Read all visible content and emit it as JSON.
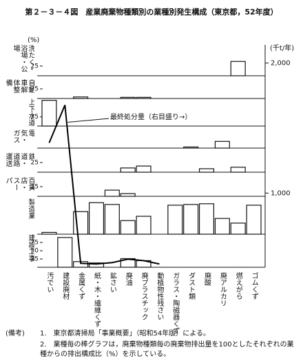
{
  "chart_data": {
    "type": "bar",
    "title": "第２－３－４図　産業廃棄物種類別の業種別発生構成（東京都，52年度）",
    "y_label": "(%)",
    "y2_label": "(千t/年)",
    "categories": [
      "汚でい",
      "建設廃材",
      "金属くず",
      "紙・木・繊維くず",
      "鉱さい",
      "廃油",
      "廃プラスチック",
      "動植物性残さい",
      "ガラス・陶磁器くず",
      "ダスト類",
      "廃酸",
      "廃アルカリ",
      "燃えがら",
      "ゴムくず"
    ],
    "color": "#ffffff",
    "panels": [
      {
        "name": "洗たく・浴場・公場",
        "ylim": [
          0,
          80
        ],
        "yticks": [
          25
        ],
        "values": [
          null,
          null,
          null,
          null,
          null,
          null,
          null,
          null,
          null,
          null,
          null,
          null,
          37,
          null
        ]
      },
      {
        "name": "自動車解体整備",
        "ylim": [
          0,
          50
        ],
        "yticks": [
          25
        ],
        "values": [
          null,
          null,
          4,
          null,
          null,
          3,
          3,
          null,
          null,
          null,
          null,
          null,
          null,
          null
        ]
      },
      {
        "name": "上下水道",
        "ylim": [
          0,
          75
        ],
        "yticks": [
          25
        ],
        "values": [
          70,
          null,
          null,
          null,
          null,
          null,
          null,
          null,
          null,
          null,
          null,
          null,
          null,
          null
        ]
      },
      {
        "name": "電気・ガス",
        "ylim": [
          0,
          50
        ],
        "values": [
          null,
          null,
          null,
          null,
          null,
          null,
          null,
          null,
          null,
          3,
          null,
          18,
          null,
          null
        ]
      },
      {
        "name": "鉄道・道路運送",
        "ylim": [
          0,
          50
        ],
        "yticks": [
          25
        ],
        "values": [
          null,
          null,
          null,
          null,
          null,
          11,
          16,
          null,
          null,
          null,
          9,
          null,
          13,
          null
        ]
      },
      {
        "name": "百貨店・スーパー・小売",
        "ylim": [
          0,
          50
        ],
        "yticks": [
          25
        ],
        "values": [
          null,
          null,
          null,
          null,
          16,
          7,
          null,
          null,
          null,
          null,
          null,
          null,
          null,
          null
        ]
      },
      {
        "name": "製造業",
        "ylim": [
          0,
          100
        ],
        "values": [
          5,
          null,
          63,
          88,
          83,
          38,
          50,
          null,
          81,
          83,
          85,
          44,
          31,
          81
        ]
      },
      {
        "name": "建設工事",
        "ylim": [
          0,
          100
        ],
        "yticks": [
          25,
          50,
          75
        ],
        "values": [
          null,
          90,
          17,
          13,
          null,
          26,
          20,
          null,
          null,
          null,
          null,
          null,
          null,
          null
        ]
      }
    ],
    "y2lim": [
      430,
      2140
    ],
    "y2ticks": [
      {
        "value": 2000,
        "label": "2,000"
      },
      {
        "value": 1000,
        "label": "1,000"
      }
    ],
    "line": {
      "name": "最終処分量（右目盛り→）",
      "axis": "y2",
      "color": "#000000",
      "values": [
        1386,
        1677,
        460,
        455,
        466,
        492,
        481,
        455,
        null,
        null,
        null,
        null,
        null,
        null
      ]
    }
  },
  "notes": {
    "label": "(備考)",
    "items": [
      "1.　東京都清掃局「事業概要」（昭和54年版）による。",
      "2.　業種毎の棒グラフは，廃棄物種類毎の廃棄物排出量を100としたそれぞれの業種からの排出構成比（%）を示している。"
    ]
  }
}
